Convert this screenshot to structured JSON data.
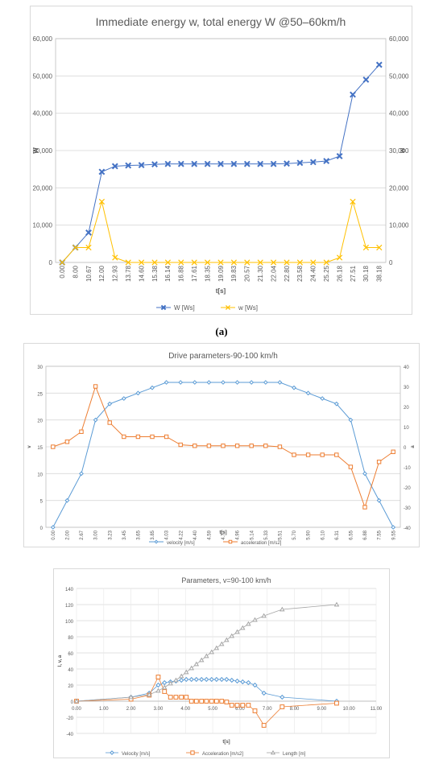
{
  "caption": "(a)",
  "chart_data": [
    {
      "type": "line",
      "title": "Immediate energy w, total energy W @50–60km/h",
      "xlabel": "t[s]",
      "ylabel": "W",
      "y2label": "w",
      "categories": [
        "0.00",
        "8.00",
        "10.67",
        "12.00",
        "12.93",
        "13.78",
        "14.60",
        "15.38",
        "16.14",
        "16.88",
        "17.61",
        "18.35",
        "19.09",
        "19.83",
        "20.57",
        "21.30",
        "22.04",
        "22.80",
        "23.58",
        "24.40",
        "25.25",
        "26.18",
        "27.51",
        "30.18",
        "38.18"
      ],
      "ylim": [
        0,
        60000
      ],
      "yticks": [
        "0",
        "10,000",
        "20,000",
        "30,000",
        "40,000",
        "50,000",
        "60,000"
      ],
      "grid": true,
      "legend": "bottom",
      "series": [
        {
          "name": "W [Ws]",
          "color": "#4472c4",
          "marker": "x-cross",
          "values": [
            0,
            4000,
            8000,
            24300,
            25800,
            26000,
            26100,
            26300,
            26400,
            26400,
            26400,
            26400,
            26400,
            26400,
            26400,
            26400,
            26400,
            26500,
            26700,
            26900,
            27200,
            28500,
            45000,
            49000,
            53000
          ]
        },
        {
          "name": "w [Ws]",
          "color": "#ffc000",
          "marker": "x",
          "values": [
            0,
            4000,
            4000,
            16300,
            1300,
            0,
            0,
            0,
            0,
            0,
            0,
            0,
            0,
            0,
            0,
            0,
            0,
            0,
            0,
            0,
            0,
            1300,
            16300,
            4000,
            4000
          ]
        }
      ]
    },
    {
      "type": "line",
      "title": "Drive parameters-90-100 km/h",
      "xlabel": "t[s]",
      "ylabel": "v",
      "y2label": "a",
      "categories": [
        "0.00",
        "2.00",
        "2.67",
        "3.00",
        "3.23",
        "3.45",
        "3.65",
        "3.85",
        "4.03",
        "4.22",
        "4.40",
        "4.59",
        "4.77",
        "4.96",
        "5.14",
        "5.33",
        "5.51",
        "5.70",
        "5.90",
        "6.10",
        "6.31",
        "6.55",
        "6.88",
        "7.55",
        "9.55"
      ],
      "ylim": [
        0,
        30
      ],
      "y2lim": [
        -40,
        40
      ],
      "yticks": [
        "0",
        "5",
        "10",
        "15",
        "20",
        "25",
        "30"
      ],
      "y2ticks": [
        "-40",
        "-30",
        "-20",
        "-10",
        "0",
        "10",
        "20",
        "30",
        "40"
      ],
      "grid": true,
      "legend": "bottom",
      "series": [
        {
          "name": "velocity [m/s]",
          "color": "#5b9bd5",
          "marker": "diamond",
          "axis": "left",
          "values": [
            0,
            5,
            10,
            20,
            23,
            24,
            25,
            26,
            27,
            27,
            27,
            27,
            27,
            27,
            27,
            27,
            27,
            26,
            25,
            24,
            23,
            20,
            10,
            5,
            0
          ]
        },
        {
          "name": "acceleration [m/s2]",
          "color": "#ed7d31",
          "marker": "square",
          "axis": "right",
          "values": [
            0,
            2.5,
            7.5,
            30,
            12,
            5,
            5,
            5,
            5,
            1,
            0.5,
            0.5,
            0.5,
            0.5,
            0.5,
            0.5,
            0,
            -4,
            -4,
            -4,
            -4,
            -10,
            -30,
            -7.5,
            -2.5
          ]
        }
      ]
    },
    {
      "type": "scatter",
      "title": "Parameters, v=90-100 km/h",
      "xlabel": "t[s]",
      "ylabel": "l, v, a",
      "xlim": [
        0,
        11
      ],
      "ylim": [
        -40,
        140
      ],
      "xticks": [
        "0.00",
        "1.00",
        "2.00",
        "3.00",
        "4.00",
        "5.00",
        "6.00",
        "7.00",
        "8.00",
        "9.00",
        "10.00",
        "11.00"
      ],
      "yticks": [
        "-40",
        "-20",
        "0",
        "20",
        "40",
        "60",
        "80",
        "100",
        "120",
        "140"
      ],
      "grid": true,
      "legend": "bottom",
      "series": [
        {
          "name": "Velocity [m/s]",
          "color": "#5b9bd5",
          "marker": "diamond",
          "x": [
            0,
            2,
            2.67,
            3,
            3.23,
            3.45,
            3.65,
            3.85,
            4.03,
            4.22,
            4.4,
            4.59,
            4.77,
            4.96,
            5.14,
            5.33,
            5.51,
            5.7,
            5.9,
            6.1,
            6.31,
            6.55,
            6.88,
            7.55,
            9.55
          ],
          "y": [
            0,
            5,
            10,
            20,
            23,
            24,
            25,
            26,
            27,
            27,
            27,
            27,
            27,
            27,
            27,
            27,
            27,
            26,
            25,
            24,
            23,
            20,
            10,
            5,
            0
          ]
        },
        {
          "name": "Acceleration [m/s2]",
          "color": "#ed7d31",
          "marker": "square",
          "x": [
            0,
            2,
            2.67,
            3,
            3.23,
            3.45,
            3.65,
            3.85,
            4.03,
            4.22,
            4.4,
            4.59,
            4.77,
            4.96,
            5.14,
            5.33,
            5.51,
            5.7,
            5.9,
            6.1,
            6.31,
            6.55,
            6.88,
            7.55,
            9.55
          ],
          "y": [
            0,
            2.5,
            7.5,
            30,
            12,
            5,
            5,
            5,
            5,
            0,
            0,
            0,
            0,
            0,
            0,
            0,
            -1,
            -5,
            -5,
            -5,
            -5,
            -12,
            -30,
            -7,
            -2.5
          ]
        },
        {
          "name": "Length [m]",
          "color": "#a5a5a5",
          "marker": "triangle",
          "x": [
            0,
            2,
            2.67,
            3,
            3.23,
            3.45,
            3.65,
            3.85,
            4.03,
            4.22,
            4.4,
            4.59,
            4.77,
            4.96,
            5.14,
            5.33,
            5.51,
            5.7,
            5.9,
            6.1,
            6.31,
            6.55,
            6.88,
            7.55,
            9.55
          ],
          "y": [
            0,
            5,
            8,
            13,
            17,
            22,
            26,
            31,
            36,
            41,
            46,
            51,
            56,
            61,
            66,
            71,
            76,
            81,
            86,
            91,
            96,
            101,
            106,
            114,
            120
          ]
        }
      ]
    }
  ]
}
